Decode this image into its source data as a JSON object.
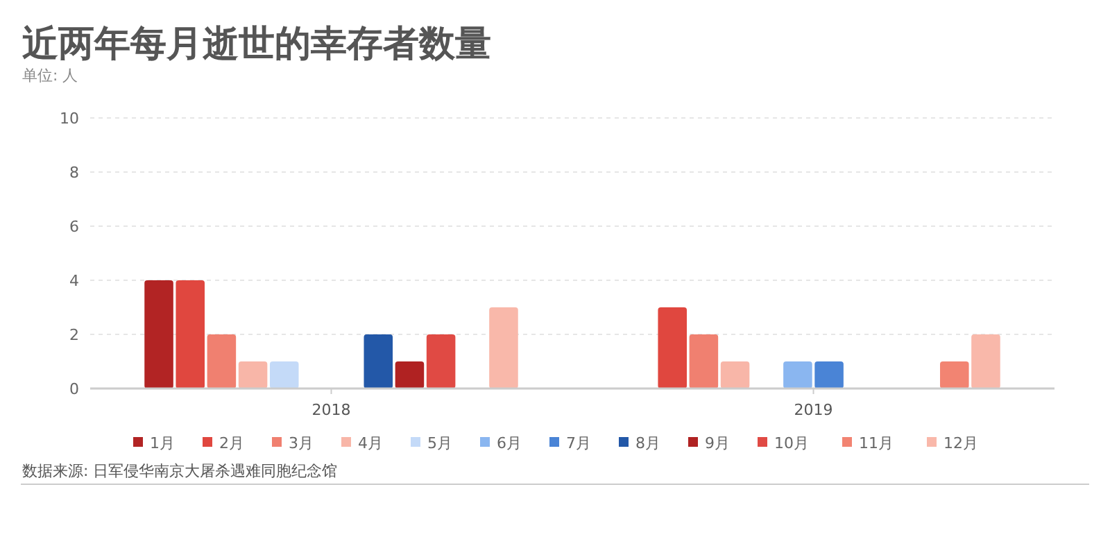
{
  "chart_data": {
    "type": "bar",
    "title": "近两年每月逝世的幸存者数量",
    "subtitle": "单位: 人",
    "categories": [
      "2018",
      "2019"
    ],
    "series": [
      {
        "name": "1月",
        "color": "#b22424",
        "values": [
          4,
          0
        ]
      },
      {
        "name": "2月",
        "color": "#e0473f",
        "values": [
          4,
          3
        ]
      },
      {
        "name": "3月",
        "color": "#f08070",
        "values": [
          2,
          2
        ]
      },
      {
        "name": "4月",
        "color": "#f8b6a8",
        "values": [
          1,
          1
        ]
      },
      {
        "name": "5月",
        "color": "#c4daf8",
        "values": [
          1,
          0
        ]
      },
      {
        "name": "6月",
        "color": "#8ab6f0",
        "values": [
          0,
          1
        ]
      },
      {
        "name": "7月",
        "color": "#4a84d6",
        "values": [
          0,
          1
        ]
      },
      {
        "name": "8月",
        "color": "#2358a8",
        "values": [
          2,
          0
        ]
      },
      {
        "name": "9月",
        "color": "#b02222",
        "values": [
          1,
          0
        ]
      },
      {
        "name": "10月",
        "color": "#e04a44",
        "values": [
          2,
          0
        ]
      },
      {
        "name": "11月",
        "color": "#f28472",
        "values": [
          0,
          1
        ]
      },
      {
        "name": "12月",
        "color": "#f9b8aa",
        "values": [
          3,
          2
        ]
      }
    ],
    "ylim": [
      0,
      10
    ],
    "yticks": [
      0,
      2,
      4,
      6,
      8,
      10
    ],
    "grid": "y",
    "legend": "bottom",
    "annotations": [
      "数据来源: 日军侵华南京大屠杀遇难同胞纪念馆"
    ]
  }
}
